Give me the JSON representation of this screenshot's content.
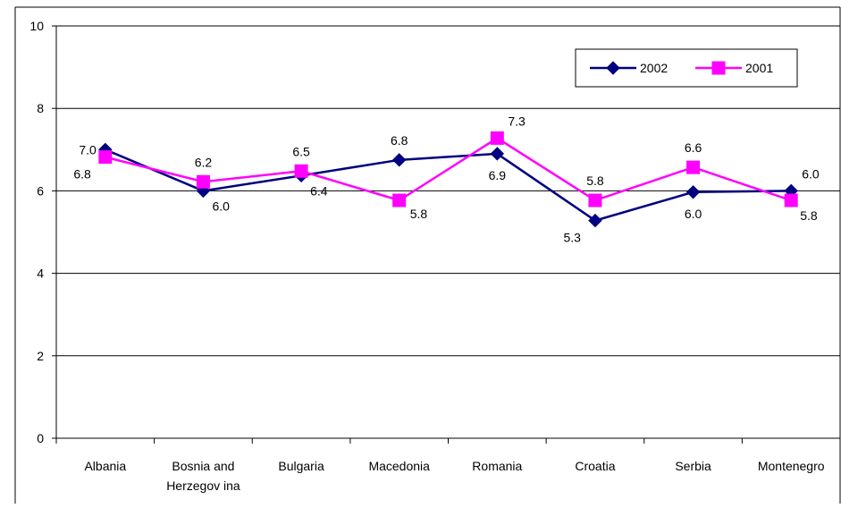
{
  "chart_data": {
    "type": "line",
    "categories": [
      "Albania",
      "Bosnia and Herzegovina",
      "Bulgaria",
      "Macedonia",
      "Romania",
      "Croatia",
      "Serbia",
      "Montenegro"
    ],
    "category_label_lines": [
      [
        "Albania"
      ],
      [
        "Bosnia and",
        "Herzegov ina"
      ],
      [
        "Bulgaria"
      ],
      [
        "Macedonia"
      ],
      [
        "Romania"
      ],
      [
        "Croatia"
      ],
      [
        "Serbia"
      ],
      [
        "Montenegro"
      ]
    ],
    "ylim": [
      0,
      10
    ],
    "yticks": [
      0,
      2,
      4,
      6,
      8,
      10
    ],
    "grid": true,
    "legend_position": "top-right",
    "series": [
      {
        "name": "2002",
        "color": "#000080",
        "marker": "diamond",
        "values": [
          7.0,
          6.0,
          6.37,
          6.75,
          6.9,
          5.28,
          5.97,
          6.0
        ],
        "labels": [
          "7.0",
          "6.0",
          "6.4",
          "6.8",
          "6.9",
          "5.3",
          "6.0",
          "6.0"
        ],
        "label_side": [
          "left",
          "below-right",
          "below-right",
          "above",
          "below",
          "below-left",
          "below",
          "above-right"
        ]
      },
      {
        "name": "2001",
        "color": "#ff00ff",
        "marker": "square",
        "values": [
          6.82,
          6.22,
          6.48,
          5.77,
          7.28,
          5.77,
          6.57,
          5.77
        ],
        "labels": [
          "6.8",
          "6.2",
          "6.5",
          "5.8",
          "7.3",
          "5.8",
          "6.6",
          "5.8"
        ],
        "label_side": [
          "below-left",
          "above",
          "above",
          "right",
          "above-right",
          "above",
          "above",
          "below-right"
        ]
      }
    ]
  }
}
